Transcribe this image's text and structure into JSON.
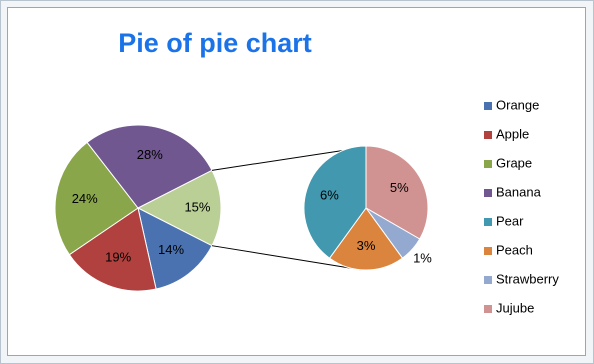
{
  "chart_data": {
    "type": "pie-of-pie",
    "title": "Pie of pie chart",
    "categories": [
      "Orange",
      "Apple",
      "Grape",
      "Banana",
      "Pear",
      "Peach",
      "Strawberry",
      "Jujube"
    ],
    "values": [
      14,
      19,
      24,
      28,
      6,
      3,
      1,
      5
    ],
    "value_labels": [
      "14%",
      "19%",
      "24%",
      "28%",
      "6%",
      "3%",
      "1%",
      "5%"
    ],
    "colors": [
      "#4a72b0",
      "#b0413e",
      "#8aa64a",
      "#71578f",
      "#4198af",
      "#db843d",
      "#93a9cf",
      "#d19392"
    ],
    "second_plot_values": 4,
    "other_value": 15,
    "other_label": "15%",
    "other_color": "#b9cf95",
    "legend": "right"
  }
}
